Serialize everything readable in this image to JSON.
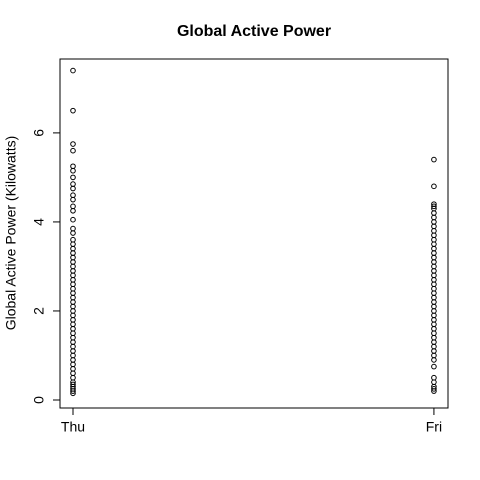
{
  "chart_data": {
    "type": "scatter",
    "title": "Global Active Power",
    "y_label": "Global Active Power (Kilowatts)",
    "x": [
      1,
      1,
      1,
      1,
      1,
      1,
      1,
      1,
      1,
      1,
      1,
      1,
      1,
      1,
      1,
      1,
      1,
      1,
      1,
      1,
      1,
      1,
      1,
      1,
      1,
      1,
      1,
      1,
      1,
      1,
      1,
      1,
      1,
      1,
      1,
      1,
      1,
      1,
      1,
      1,
      1,
      1,
      1,
      1,
      1,
      1,
      1,
      1,
      1,
      1,
      1,
      1,
      1,
      1,
      2,
      2,
      2,
      2,
      2,
      2,
      2,
      2,
      2,
      2,
      2,
      2,
      2,
      2,
      2,
      2,
      2,
      2,
      2,
      2,
      2,
      2,
      2,
      2,
      2,
      2,
      2,
      2,
      2,
      2,
      2,
      2,
      2,
      2,
      2,
      2,
      2,
      2,
      2,
      2,
      2,
      2,
      2,
      2,
      2
    ],
    "y": [
      7.4,
      6.5,
      5.75,
      5.6,
      5.25,
      5.15,
      5.0,
      4.85,
      4.75,
      4.6,
      4.5,
      4.35,
      4.25,
      4.05,
      3.85,
      3.75,
      3.6,
      3.5,
      3.4,
      3.3,
      3.2,
      3.1,
      3.0,
      2.9,
      2.8,
      2.7,
      2.6,
      2.5,
      2.4,
      2.3,
      2.2,
      2.1,
      2.0,
      1.9,
      1.8,
      1.7,
      1.6,
      1.5,
      1.4,
      1.3,
      1.2,
      1.1,
      1.0,
      0.9,
      0.8,
      0.7,
      0.6,
      0.5,
      0.4,
      0.35,
      0.3,
      0.25,
      0.2,
      0.15,
      5.4,
      4.8,
      4.4,
      4.35,
      4.3,
      4.2,
      4.1,
      4.0,
      3.9,
      3.8,
      3.7,
      3.6,
      3.5,
      3.4,
      3.3,
      3.2,
      3.1,
      3.0,
      2.9,
      2.8,
      2.7,
      2.6,
      2.5,
      2.4,
      2.3,
      2.2,
      2.1,
      2.0,
      1.9,
      1.8,
      1.7,
      1.6,
      1.5,
      1.4,
      1.3,
      1.2,
      1.1,
      1.0,
      0.9,
      0.75,
      0.5,
      0.4,
      0.3,
      0.25,
      0.2
    ],
    "xlim": [
      0.964,
      2.039
    ],
    "ylim": [
      -0.18,
      7.66
    ],
    "xticks": [
      {
        "value": 1,
        "label": "Thu"
      },
      {
        "value": 2,
        "label": "Fri"
      }
    ],
    "yticks": [
      0,
      2,
      4,
      6
    ],
    "color": "#000000"
  }
}
